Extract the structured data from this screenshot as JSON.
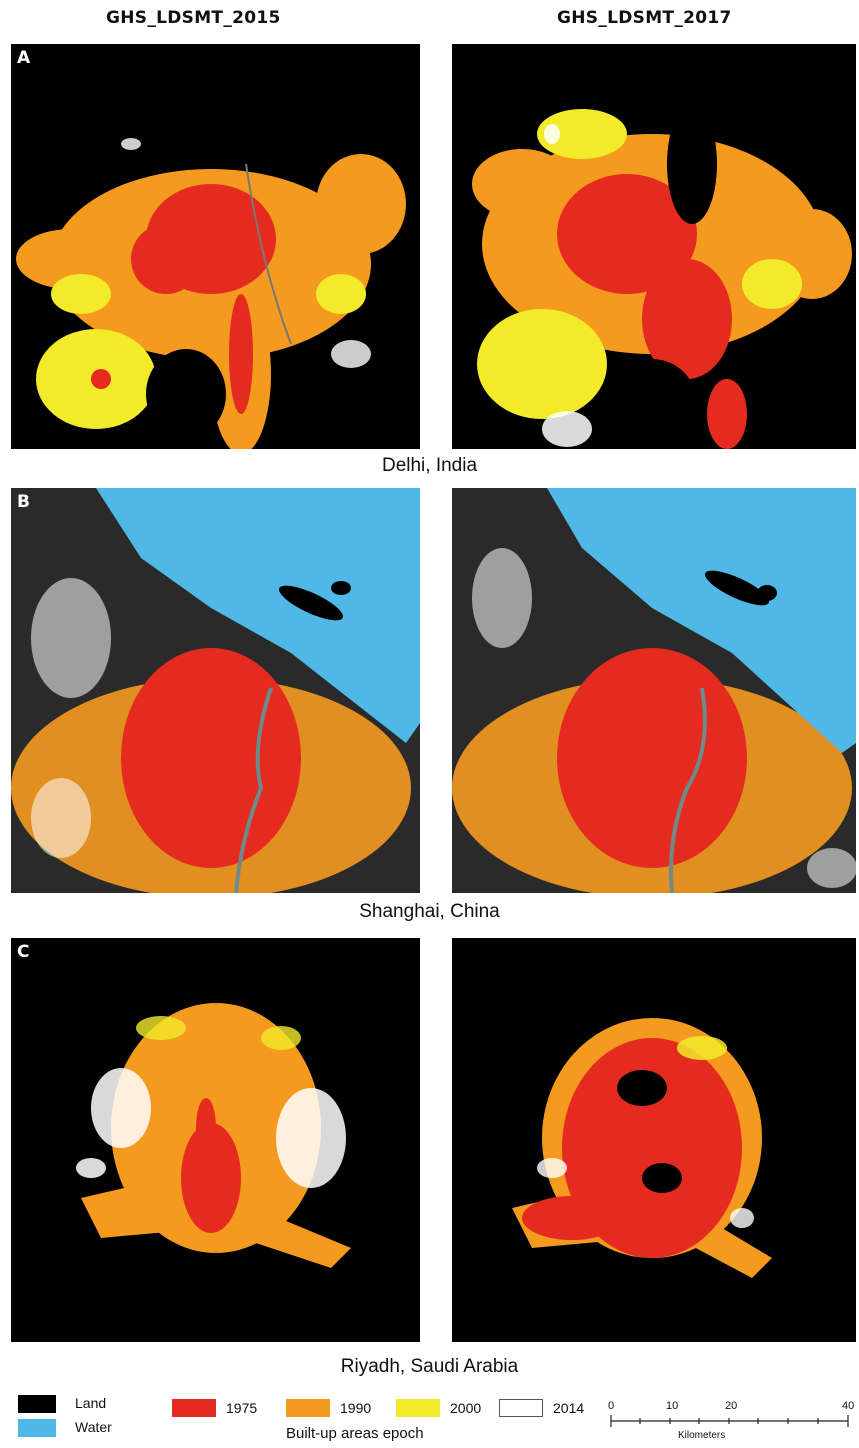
{
  "columns": {
    "left": "GHS_LDSMT_2015",
    "right": "GHS_LDSMT_2017"
  },
  "rows": [
    {
      "letter": "A",
      "city": "Delhi, India"
    },
    {
      "letter": "B",
      "city": "Shanghai, China"
    },
    {
      "letter": "C",
      "city": "Riyadh, Saudi Arabia"
    }
  ],
  "legend": {
    "land": {
      "label": "Land",
      "color": "#000000"
    },
    "water": {
      "label": "Water",
      "color": "#4fb8e6"
    },
    "epochs": [
      {
        "label": "1975",
        "color": "#e52b1f"
      },
      {
        "label": "1990",
        "color": "#f49a1f"
      },
      {
        "label": "2000",
        "color": "#f3ea2a"
      },
      {
        "label": "2014",
        "color": "#ffffff"
      }
    ],
    "epoch_caption": "Built-up areas epoch"
  },
  "scale_bar": {
    "ticks": [
      "0",
      "10",
      "20",
      "40"
    ],
    "unit": "Kilometers"
  }
}
